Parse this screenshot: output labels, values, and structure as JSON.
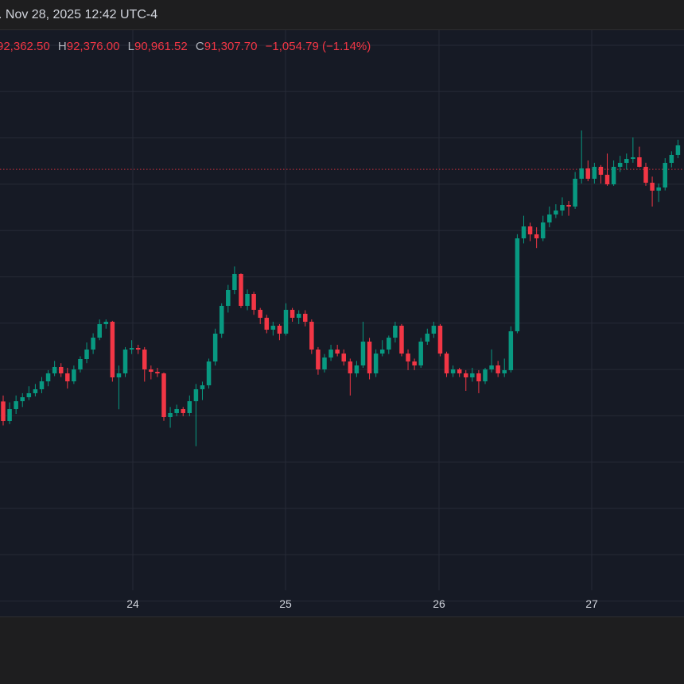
{
  "header": {
    "datetime": ". Nov 28, 2025 12:42 UTC-4"
  },
  "legend": {
    "open": "92,362.50",
    "high_label": "H",
    "high": "92,376.00",
    "low_label": "L",
    "low": "90,961.52",
    "close_label": "C",
    "close": "91,307.70",
    "change": "−1,054.79 (−1.14%)"
  },
  "colors": {
    "up": "#089981",
    "down": "#f23645",
    "background": "#161a25",
    "grid": "#262a36",
    "price_line": "#f23645"
  },
  "chart_data": {
    "type": "candlestick",
    "interval": "hourly",
    "x_tick_labels": [
      "24",
      "25",
      "26",
      "27"
    ],
    "last_price": 91307.7,
    "grid": true,
    "candles": [
      [
        86270,
        86400,
        85750,
        85845
      ],
      [
        85845,
        86250,
        85780,
        86104
      ],
      [
        86104,
        86400,
        86000,
        86276
      ],
      [
        86276,
        86450,
        86150,
        86362
      ],
      [
        86362,
        86600,
        86300,
        86449
      ],
      [
        86449,
        86650,
        86380,
        86535
      ],
      [
        86535,
        86800,
        86450,
        86707
      ],
      [
        86707,
        86950,
        86600,
        86880
      ],
      [
        86880,
        87150,
        86820,
        87018
      ],
      [
        87018,
        87100,
        86800,
        86880
      ],
      [
        86880,
        87000,
        86550,
        86707
      ],
      [
        86707,
        87050,
        86650,
        86966
      ],
      [
        86966,
        87250,
        86900,
        87190
      ],
      [
        87190,
        87550,
        87100,
        87397
      ],
      [
        87397,
        87750,
        87300,
        87655
      ],
      [
        87655,
        88050,
        87600,
        87948
      ],
      [
        87948,
        88050,
        87850,
        88000
      ],
      [
        88000,
        88020,
        86700,
        86793
      ],
      [
        86793,
        87050,
        86100,
        86880
      ],
      [
        86880,
        87450,
        86800,
        87397
      ],
      [
        87397,
        87600,
        87300,
        87431
      ],
      [
        87431,
        87500,
        87300,
        87397
      ],
      [
        87397,
        87450,
        86700,
        86966
      ],
      [
        86966,
        87050,
        86750,
        86914
      ],
      [
        86914,
        87000,
        86800,
        86880
      ],
      [
        86880,
        86900,
        85850,
        85931
      ],
      [
        85931,
        86150,
        85700,
        86018
      ],
      [
        86018,
        86200,
        85950,
        86104
      ],
      [
        86104,
        86150,
        85950,
        86018
      ],
      [
        86018,
        86400,
        85950,
        86276
      ],
      [
        86276,
        86650,
        85300,
        86535
      ],
      [
        86535,
        86700,
        86300,
        86621
      ],
      [
        86621,
        87200,
        86550,
        87138
      ],
      [
        87138,
        87850,
        87050,
        87742
      ],
      [
        87742,
        88400,
        87650,
        88345
      ],
      [
        88345,
        88800,
        88200,
        88690
      ],
      [
        88690,
        89200,
        88600,
        89035
      ],
      [
        89035,
        89050,
        88300,
        88345
      ],
      [
        88345,
        88700,
        88250,
        88604
      ],
      [
        88604,
        88650,
        88150,
        88259
      ],
      [
        88259,
        88300,
        87950,
        88086
      ],
      [
        88086,
        88150,
        87750,
        87828
      ],
      [
        87828,
        88000,
        87700,
        87914
      ],
      [
        87914,
        87950,
        87600,
        87742
      ],
      [
        87742,
        88400,
        87700,
        88259
      ],
      [
        88259,
        88300,
        88000,
        88086
      ],
      [
        88086,
        88250,
        87950,
        88173
      ],
      [
        88173,
        88250,
        87900,
        88000
      ],
      [
        88000,
        88050,
        87300,
        87397
      ],
      [
        87397,
        87450,
        86850,
        86966
      ],
      [
        86966,
        87300,
        86900,
        87224
      ],
      [
        87224,
        87500,
        87150,
        87397
      ],
      [
        87397,
        87500,
        87250,
        87310
      ],
      [
        87310,
        87400,
        87050,
        87138
      ],
      [
        87138,
        87200,
        86400,
        86880
      ],
      [
        86880,
        87150,
        86800,
        87052
      ],
      [
        87052,
        88000,
        87000,
        87569
      ],
      [
        87569,
        87650,
        86750,
        86880
      ],
      [
        86880,
        87400,
        86800,
        87310
      ],
      [
        87310,
        87600,
        87250,
        87397
      ],
      [
        87397,
        87700,
        87300,
        87655
      ],
      [
        87655,
        88000,
        87550,
        87914
      ],
      [
        87914,
        87950,
        87250,
        87310
      ],
      [
        87310,
        87400,
        86950,
        87138
      ],
      [
        87138,
        87200,
        86950,
        87052
      ],
      [
        87052,
        87650,
        87000,
        87569
      ],
      [
        87569,
        87850,
        87500,
        87742
      ],
      [
        87742,
        88000,
        87650,
        87914
      ],
      [
        87914,
        87950,
        87250,
        87310
      ],
      [
        87310,
        87350,
        86800,
        86880
      ],
      [
        86880,
        87050,
        86800,
        86966
      ],
      [
        86966,
        87000,
        86800,
        86880
      ],
      [
        86880,
        86950,
        86500,
        86793
      ],
      [
        86793,
        87000,
        86700,
        86880
      ],
      [
        86880,
        86950,
        86450,
        86707
      ],
      [
        86707,
        87000,
        86650,
        86966
      ],
      [
        86966,
        87400,
        86900,
        87052
      ],
      [
        87052,
        87150,
        86800,
        86880
      ],
      [
        86880,
        87200,
        86800,
        86949
      ],
      [
        86949,
        87900,
        86900,
        87793
      ],
      [
        87793,
        89900,
        87750,
        89810
      ],
      [
        89810,
        90300,
        89700,
        90069
      ],
      [
        90069,
        90150,
        89750,
        89897
      ],
      [
        89897,
        90050,
        89600,
        89810
      ],
      [
        89810,
        90300,
        89750,
        90155
      ],
      [
        90155,
        90500,
        90050,
        90328
      ],
      [
        90328,
        90550,
        90250,
        90414
      ],
      [
        90414,
        90700,
        90300,
        90535
      ],
      [
        90535,
        90620,
        90300,
        90500
      ],
      [
        90500,
        91250,
        90450,
        91103
      ],
      [
        91103,
        92150,
        91000,
        91328
      ],
      [
        91328,
        91500,
        91050,
        91103
      ],
      [
        91103,
        91450,
        91000,
        91362
      ],
      [
        91362,
        91400,
        91000,
        91190
      ],
      [
        91190,
        91650,
        90950,
        90983
      ],
      [
        90983,
        91500,
        90950,
        91362
      ],
      [
        91362,
        91600,
        91250,
        91448
      ],
      [
        91448,
        91650,
        91300,
        91534
      ],
      [
        91534,
        92000,
        91450,
        91569
      ],
      [
        91569,
        91800,
        91350,
        91362
      ],
      [
        91362,
        91450,
        90950,
        91017
      ],
      [
        91017,
        91150,
        90500,
        90845
      ],
      [
        90845,
        91000,
        90600,
        90914
      ],
      [
        90914,
        91550,
        90850,
        91448
      ],
      [
        91448,
        91700,
        91350,
        91621
      ],
      [
        91621,
        91950,
        91550,
        91828
      ]
    ]
  }
}
